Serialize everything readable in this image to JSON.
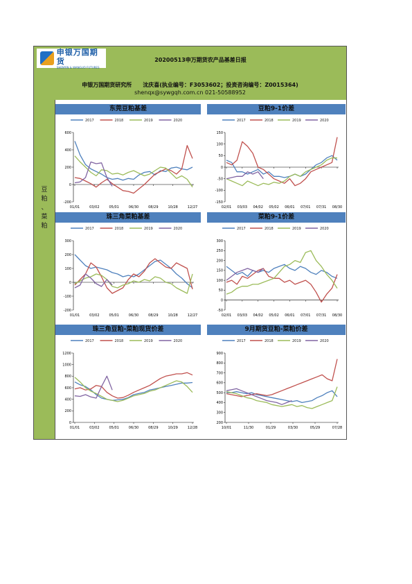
{
  "header": {
    "logo_cn": "申银万国期货",
    "logo_en": "SHENYIN & WANGUO FUTURES",
    "report_title": "20200513申万期货农产品基差日报",
    "author_line": "申银万国期货研究所　　沈庆喜(执业编号：F3053602；投资咨询编号：Z0015364)",
    "contact_line": "shenqx@sywgqh.com.cn 021-50588952"
  },
  "sidebar": {
    "label": [
      "豆",
      "粕",
      "、",
      "菜",
      "粕"
    ]
  },
  "colors": {
    "2017": "#4F81BD",
    "2018": "#C0504D",
    "2019": "#9BBB59",
    "2020": "#8064A2",
    "header_bg": "#9BBB59",
    "title_bar": "#4F81BD"
  },
  "chart_data": [
    {
      "id": "c1",
      "title": "东莞豆粕基差",
      "type": "line",
      "ylim": [
        -200,
        600
      ],
      "yticks": [
        -200,
        0,
        200,
        400,
        600
      ],
      "xticks": [
        "01/01",
        "03/02",
        "05/01",
        "06/30",
        "08/29",
        "10/28",
        "12/27"
      ],
      "zero_line": true,
      "series": [
        {
          "name": "2017",
          "values": [
            500,
            340,
            230,
            180,
            150,
            120,
            80,
            60,
            70,
            50,
            70,
            60,
            110,
            140,
            150,
            110,
            160,
            150,
            190,
            200,
            180,
            170,
            200
          ]
        },
        {
          "name": "2018",
          "values": [
            80,
            70,
            40,
            10,
            -30,
            20,
            60,
            10,
            -30,
            -70,
            -80,
            -100,
            -50,
            0,
            60,
            120,
            150,
            180,
            160,
            120,
            180,
            450,
            300
          ]
        },
        {
          "name": "2019",
          "values": [
            330,
            260,
            200,
            140,
            100,
            170,
            160,
            120,
            130,
            110,
            140,
            160,
            130,
            100,
            120,
            160,
            200,
            190,
            130,
            70,
            100,
            60,
            -30
          ]
        },
        {
          "name": "2020",
          "values": [
            20,
            30,
            80,
            260,
            240,
            250,
            80,
            -20,
            null,
            null,
            null,
            null,
            null,
            null,
            null,
            null,
            null,
            null,
            null,
            null,
            null,
            null,
            null
          ]
        }
      ]
    },
    {
      "id": "c2",
      "title": "豆粕9-1价差",
      "type": "line",
      "ylim": [
        -150,
        150
      ],
      "yticks": [
        -150,
        -100,
        -50,
        0,
        50,
        100,
        150
      ],
      "xticks": [
        "02/01",
        "03/03",
        "04/02",
        "05/02",
        "06/01",
        "07/01",
        "07/31",
        "08/30"
      ],
      "zero_line": true,
      "series": [
        {
          "name": "2017",
          "values": [
            30,
            20,
            -20,
            -20,
            -30,
            -20,
            -10,
            -30,
            -20,
            -40,
            -40,
            -45,
            -40,
            -30,
            -40,
            -30,
            -10,
            10,
            20,
            40,
            50,
            30
          ]
        },
        {
          "name": "2018",
          "values": [
            20,
            10,
            30,
            110,
            90,
            60,
            0,
            -10,
            -30,
            -50,
            -60,
            -70,
            -50,
            -80,
            -70,
            -50,
            -20,
            -10,
            0,
            10,
            20,
            130
          ]
        },
        {
          "name": "2019",
          "values": [
            -50,
            -60,
            -70,
            -80,
            -60,
            -70,
            -80,
            -70,
            -75,
            -65,
            -70,
            -60,
            -40,
            -30,
            -40,
            -20,
            -10,
            0,
            10,
            30,
            40,
            40
          ]
        },
        {
          "name": "2020",
          "values": [
            -50,
            -45,
            -40,
            -40,
            -20,
            -30,
            -20,
            -50,
            null,
            null,
            null,
            null,
            null,
            null,
            null,
            null,
            null,
            null,
            null,
            null,
            null,
            null
          ]
        }
      ]
    },
    {
      "id": "c3",
      "title": "珠三角菜粕基差",
      "type": "line",
      "ylim": [
        -200,
        300
      ],
      "yticks": [
        -200,
        -100,
        0,
        100,
        200,
        300
      ],
      "xticks": [
        "01/01",
        "03/02",
        "05/01",
        "06/30",
        "08/29",
        "10/28",
        "12/27"
      ],
      "zero_line": true,
      "series": [
        {
          "name": "2017",
          "values": [
            200,
            160,
            120,
            100,
            110,
            100,
            90,
            70,
            60,
            40,
            50,
            40,
            60,
            90,
            120,
            150,
            160,
            130,
            100,
            60,
            30,
            -10,
            -40
          ]
        },
        {
          "name": "2018",
          "values": [
            -20,
            20,
            60,
            140,
            110,
            40,
            -40,
            -80,
            -60,
            -40,
            20,
            60,
            40,
            80,
            140,
            170,
            140,
            110,
            100,
            140,
            120,
            100,
            -50
          ]
        },
        {
          "name": "2019",
          "values": [
            -10,
            10,
            30,
            40,
            60,
            50,
            20,
            -30,
            -40,
            -20,
            -10,
            10,
            0,
            20,
            10,
            40,
            30,
            0,
            -10,
            -40,
            -60,
            -80,
            60
          ]
        },
        {
          "name": "2020",
          "values": [
            -40,
            -20,
            60,
            30,
            -10,
            -30,
            20,
            -20,
            null,
            null,
            null,
            null,
            null,
            null,
            null,
            null,
            null,
            null,
            null,
            null,
            null,
            null,
            null
          ]
        }
      ]
    },
    {
      "id": "c4",
      "title": "菜粕9-1价差",
      "type": "line",
      "ylim": [
        -50,
        300
      ],
      "yticks": [
        -50,
        0,
        50,
        100,
        150,
        200,
        250,
        300
      ],
      "xticks": [
        "02/01",
        "03/03",
        "04/02",
        "05/02",
        "06/01",
        "07/01",
        "07/31",
        "08/30"
      ],
      "zero_line": true,
      "series": [
        {
          "name": "2017",
          "values": [
            170,
            150,
            130,
            140,
            120,
            150,
            140,
            150,
            140,
            160,
            170,
            180,
            160,
            150,
            170,
            160,
            140,
            130,
            150,
            140,
            120,
            110
          ]
        },
        {
          "name": "2018",
          "values": [
            90,
            100,
            80,
            120,
            110,
            130,
            150,
            160,
            120,
            110,
            110,
            90,
            100,
            80,
            90,
            100,
            80,
            40,
            -10,
            30,
            60,
            130
          ]
        },
        {
          "name": "2019",
          "values": [
            30,
            40,
            60,
            70,
            70,
            80,
            80,
            90,
            100,
            110,
            140,
            170,
            180,
            200,
            190,
            240,
            250,
            200,
            170,
            130,
            100,
            60
          ]
        },
        {
          "name": "2020",
          "values": [
            100,
            120,
            140,
            150,
            160,
            150,
            140,
            160,
            null,
            null,
            null,
            null,
            null,
            null,
            null,
            null,
            null,
            null,
            null,
            null,
            null,
            null
          ]
        }
      ]
    },
    {
      "id": "c5",
      "title": "珠三角豆粕-菜粕现货价差",
      "type": "line",
      "ylim": [
        0,
        1200
      ],
      "yticks": [
        0,
        200,
        400,
        600,
        800,
        1000,
        1200
      ],
      "xticks": [
        "01/01",
        "03/02",
        "05/01",
        "06/30",
        "08/29",
        "10/29",
        "12/28"
      ],
      "zero_line": false,
      "series": [
        {
          "name": "2017",
          "values": [
            700,
            650,
            620,
            560,
            480,
            420,
            400,
            380,
            390,
            400,
            430,
            480,
            500,
            520,
            560,
            580,
            600,
            620,
            640,
            660,
            680,
            680,
            690
          ]
        },
        {
          "name": "2018",
          "values": [
            580,
            600,
            560,
            580,
            640,
            620,
            520,
            460,
            420,
            430,
            470,
            520,
            560,
            600,
            640,
            700,
            760,
            800,
            820,
            840,
            840,
            860,
            820
          ]
        },
        {
          "name": "2019",
          "values": [
            780,
            700,
            600,
            540,
            500,
            450,
            400,
            380,
            360,
            380,
            420,
            460,
            480,
            500,
            540,
            560,
            600,
            640,
            680,
            720,
            700,
            620,
            520
          ]
        },
        {
          "name": "2020",
          "values": [
            460,
            450,
            480,
            440,
            420,
            620,
            800,
            560,
            null,
            null,
            null,
            null,
            null,
            null,
            null,
            null,
            null,
            null,
            null,
            null,
            null,
            null,
            null
          ]
        }
      ]
    },
    {
      "id": "c6",
      "title": "9月期货豆粕-菜粕价差",
      "type": "line",
      "ylim": [
        200,
        900
      ],
      "yticks": [
        200,
        300,
        400,
        500,
        600,
        700,
        800,
        900
      ],
      "xticks": [
        "10/01",
        "11/30",
        "01/29",
        "03/30",
        "05/29",
        "07/28"
      ],
      "zero_line": false,
      "series": [
        {
          "name": "2017",
          "values": [
            500,
            500,
            510,
            500,
            490,
            500,
            480,
            470,
            460,
            450,
            440,
            430,
            420,
            410,
            420,
            400,
            410,
            420,
            450,
            470,
            500,
            520,
            460
          ]
        },
        {
          "name": "2018",
          "values": [
            490,
            480,
            470,
            460,
            470,
            480,
            490,
            480,
            470,
            480,
            500,
            520,
            540,
            560,
            580,
            600,
            620,
            640,
            660,
            680,
            640,
            620,
            840
          ]
        },
        {
          "name": "2019",
          "values": [
            510,
            500,
            490,
            470,
            450,
            440,
            420,
            410,
            400,
            380,
            370,
            360,
            370,
            380,
            360,
            370,
            350,
            340,
            360,
            380,
            400,
            420,
            560
          ]
        },
        {
          "name": "2020",
          "values": [
            520,
            530,
            540,
            520,
            500,
            480,
            460,
            440,
            420,
            410,
            400,
            380,
            400,
            420,
            null,
            null,
            null,
            null,
            null,
            null,
            null,
            null,
            null
          ]
        }
      ]
    }
  ]
}
